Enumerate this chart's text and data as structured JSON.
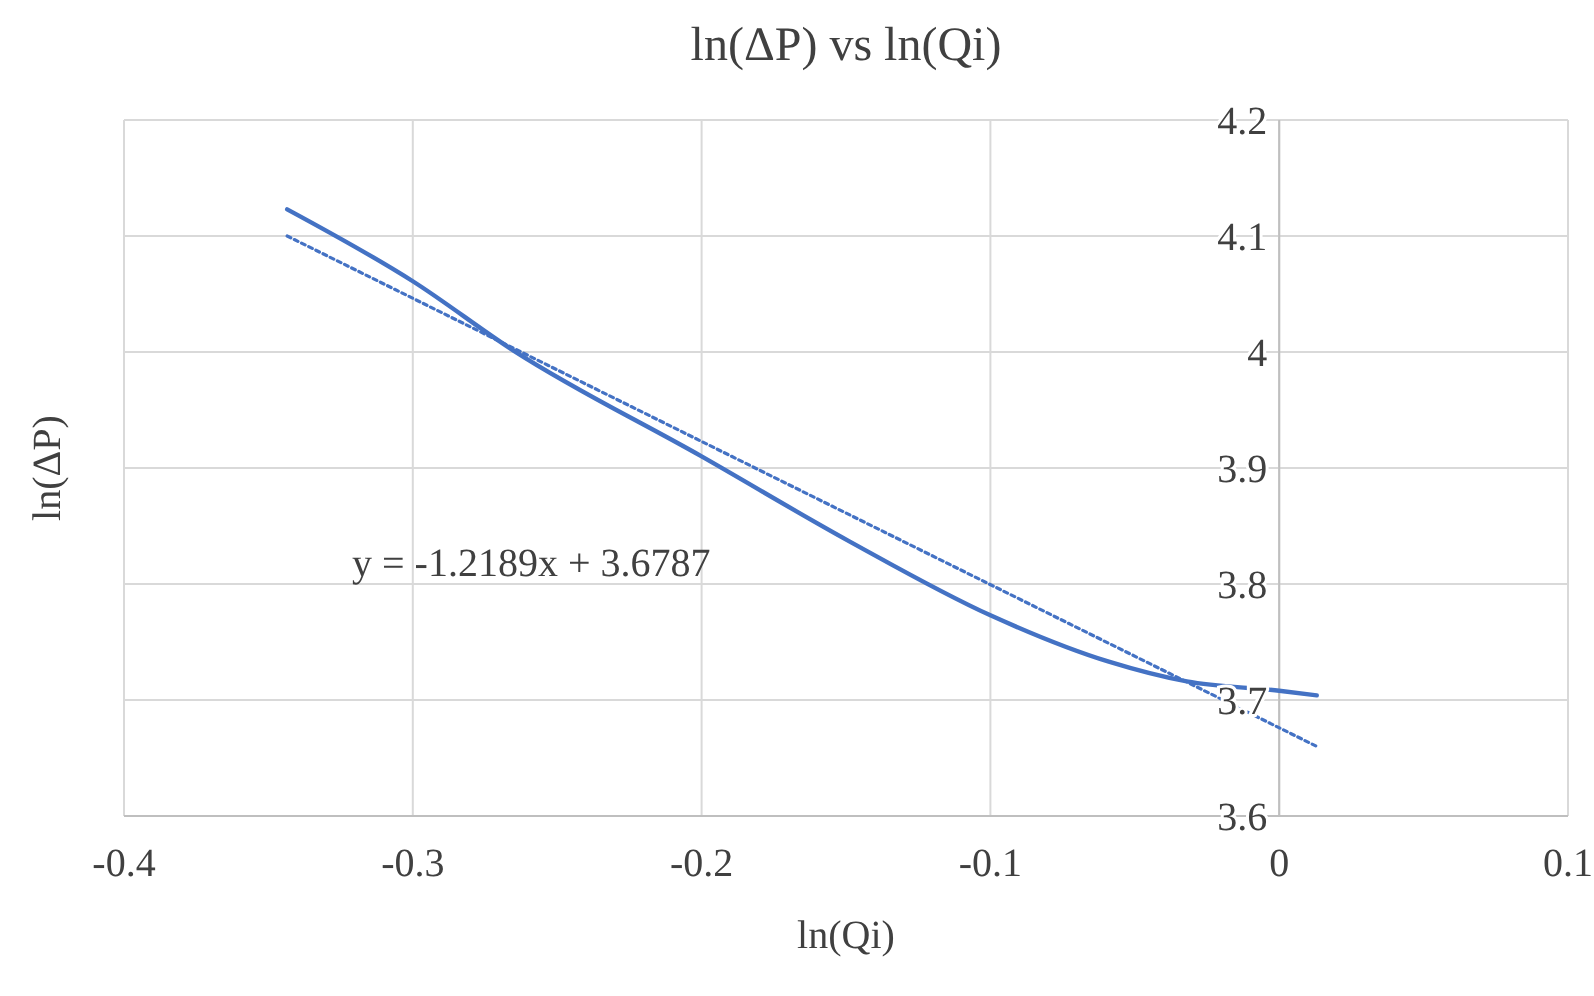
{
  "chart_data": {
    "type": "line",
    "title": "ln(ΔP) vs ln(Qi)",
    "xlabel": "ln(Qi)",
    "ylabel": "ln(ΔP)",
    "annotations": [
      "y = -1.2189x + 3.6787"
    ],
    "xlim": [
      -0.4,
      0.1
    ],
    "xticks": [
      -0.4,
      -0.3,
      -0.2,
      -0.1,
      0,
      0.1
    ],
    "ylim": [
      3.6,
      4.2
    ],
    "yticks": [
      3.6,
      3.7,
      3.8,
      3.9,
      4,
      4.1,
      4.2
    ],
    "grid": true,
    "marker": "none",
    "series": [
      {
        "color": "#4472c4",
        "line_style": "solid",
        "x": [
          -0.3435,
          -0.3,
          -0.265,
          -0.2,
          -0.149,
          -0.1,
          -0.059,
          -0.032,
          0,
          0.013
        ],
        "values": [
          4.123,
          4.061,
          4.001,
          3.91,
          3.837,
          3.773,
          3.733,
          3.716,
          3.708,
          3.704
        ]
      },
      {
        "color": "#4472c4",
        "line_style": "dotted",
        "x": [
          -0.3435,
          0.013
        ],
        "values": [
          4.1,
          3.66
        ]
      }
    ]
  }
}
